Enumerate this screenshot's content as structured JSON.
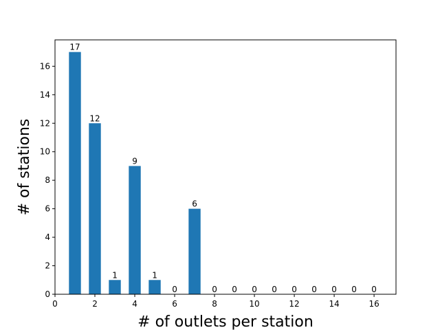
{
  "chart_data": {
    "type": "bar",
    "title": "",
    "xlabel": "# of outlets per station",
    "ylabel": "# of stations",
    "x": [
      1,
      2,
      3,
      4,
      5,
      6,
      7,
      8,
      9,
      10,
      11,
      12,
      13,
      14,
      15,
      16
    ],
    "values": [
      17,
      12,
      1,
      9,
      1,
      0,
      6,
      0,
      0,
      0,
      0,
      0,
      0,
      0,
      0,
      0
    ],
    "data_labels": [
      "17",
      "12",
      "1",
      "9",
      "1",
      "0",
      "6",
      "0",
      "0",
      "0",
      "0",
      "0",
      "0",
      "0",
      "0",
      "0"
    ],
    "xlim": [
      0,
      17.1
    ],
    "ylim": [
      0,
      17.85
    ],
    "xticks": [
      0,
      2,
      4,
      6,
      8,
      10,
      12,
      14,
      16
    ],
    "yticks": [
      0,
      2,
      4,
      6,
      8,
      10,
      12,
      14,
      16
    ],
    "bar_width": 0.6,
    "bar_color": "#1f77b4",
    "grid": false,
    "legend": "none"
  }
}
